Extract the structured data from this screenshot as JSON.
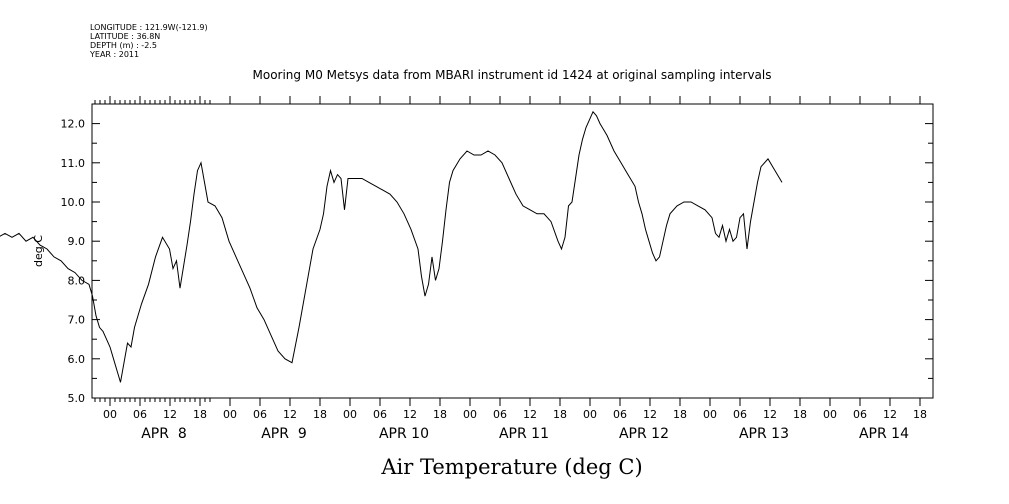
{
  "meta": {
    "longitude": "LONGITUDE : 121.9W(-121.9)",
    "latitude": "LATITUDE : 36.8N",
    "depth": "DEPTH (m) : -2.5",
    "year": "YEAR : 2011"
  },
  "chart_data": {
    "type": "line",
    "title": "Mooring M0 Metsys data from MBARI instrument id 1424 at original sampling intervals",
    "xlabel": "Air Temperature (deg C)",
    "ylabel": "deg C",
    "ylim": [
      5.0,
      12.5
    ],
    "xlim": [
      -3.8,
      19.2
    ],
    "x_units": "hours since Apr 8 00:00 UTC",
    "y_ticks": [
      "5.0",
      "6.0",
      "7.0",
      "8.0",
      "9.0",
      "10.0",
      "11.0",
      "12.0"
    ],
    "x_hour_ticks": [
      "00",
      "06",
      "12",
      "18"
    ],
    "days": [
      "APR  8",
      "APR  9",
      "APR 10",
      "APR 11",
      "APR 12",
      "APR 13",
      "APR 14"
    ],
    "grid": false,
    "series": [
      {
        "points": [
          [
            -3.8,
            9.5
          ],
          [
            -3.6,
            9.0
          ],
          [
            -3.4,
            9.3
          ],
          [
            -3.2,
            9.1
          ],
          [
            -3.0,
            9.2
          ],
          [
            -2.8,
            9.1
          ],
          [
            -2.6,
            9.2
          ],
          [
            -2.4,
            9.0
          ],
          [
            -2.2,
            9.1
          ],
          [
            -2.0,
            8.9
          ],
          [
            -1.8,
            8.8
          ],
          [
            -1.6,
            8.6
          ],
          [
            -1.4,
            8.5
          ],
          [
            -1.2,
            8.3
          ],
          [
            -1.0,
            8.2
          ],
          [
            -0.8,
            8.0
          ],
          [
            -0.6,
            7.9
          ],
          [
            -0.5,
            7.6
          ],
          [
            -0.4,
            7.1
          ],
          [
            -0.3,
            6.8
          ],
          [
            -0.2,
            6.7
          ],
          [
            -0.1,
            6.5
          ],
          [
            0.0,
            6.3
          ],
          [
            0.1,
            6.0
          ],
          [
            0.2,
            5.7
          ],
          [
            0.3,
            5.4
          ],
          [
            0.4,
            5.9
          ],
          [
            0.5,
            6.4
          ],
          [
            0.6,
            6.3
          ],
          [
            0.7,
            6.8
          ],
          [
            0.9,
            7.4
          ],
          [
            1.1,
            7.9
          ],
          [
            1.3,
            8.6
          ],
          [
            1.5,
            9.1
          ],
          [
            1.7,
            8.8
          ],
          [
            1.8,
            8.3
          ],
          [
            1.9,
            8.5
          ],
          [
            2.0,
            7.8
          ],
          [
            2.2,
            8.9
          ],
          [
            2.3,
            9.5
          ],
          [
            2.4,
            10.2
          ],
          [
            2.5,
            10.8
          ],
          [
            2.6,
            11.0
          ],
          [
            2.7,
            10.5
          ],
          [
            2.8,
            10.0
          ],
          [
            3.0,
            9.9
          ],
          [
            3.2,
            9.6
          ],
          [
            3.4,
            9.0
          ],
          [
            3.6,
            8.6
          ],
          [
            3.8,
            8.2
          ],
          [
            4.0,
            7.8
          ],
          [
            4.2,
            7.3
          ],
          [
            4.4,
            7.0
          ],
          [
            4.6,
            6.6
          ],
          [
            4.8,
            6.2
          ],
          [
            5.0,
            6.0
          ],
          [
            5.2,
            5.9
          ],
          [
            5.4,
            6.8
          ],
          [
            5.6,
            7.8
          ],
          [
            5.8,
            8.8
          ],
          [
            6.0,
            9.3
          ],
          [
            6.1,
            9.7
          ],
          [
            6.2,
            10.4
          ],
          [
            6.3,
            10.8
          ],
          [
            6.4,
            10.5
          ],
          [
            6.5,
            10.7
          ],
          [
            6.6,
            10.6
          ],
          [
            6.7,
            9.8
          ],
          [
            6.8,
            10.6
          ],
          [
            7.0,
            10.6
          ],
          [
            7.2,
            10.6
          ],
          [
            7.4,
            10.5
          ],
          [
            7.6,
            10.4
          ],
          [
            7.8,
            10.3
          ],
          [
            8.0,
            10.2
          ],
          [
            8.2,
            10.0
          ],
          [
            8.4,
            9.7
          ],
          [
            8.6,
            9.3
          ],
          [
            8.8,
            8.8
          ],
          [
            8.9,
            8.1
          ],
          [
            9.0,
            7.6
          ],
          [
            9.1,
            7.9
          ],
          [
            9.2,
            8.6
          ],
          [
            9.3,
            8.0
          ],
          [
            9.4,
            8.3
          ],
          [
            9.5,
            9.0
          ],
          [
            9.6,
            9.8
          ],
          [
            9.7,
            10.5
          ],
          [
            9.8,
            10.8
          ],
          [
            10.0,
            11.1
          ],
          [
            10.2,
            11.3
          ],
          [
            10.4,
            11.2
          ],
          [
            10.6,
            11.2
          ],
          [
            10.8,
            11.3
          ],
          [
            11.0,
            11.2
          ],
          [
            11.2,
            11.0
          ],
          [
            11.4,
            10.6
          ],
          [
            11.6,
            10.2
          ],
          [
            11.8,
            9.9
          ],
          [
            12.0,
            9.8
          ],
          [
            12.2,
            9.7
          ],
          [
            12.4,
            9.7
          ],
          [
            12.6,
            9.5
          ],
          [
            12.8,
            9.0
          ],
          [
            12.9,
            8.8
          ],
          [
            13.0,
            9.1
          ],
          [
            13.1,
            9.9
          ],
          [
            13.2,
            10.0
          ],
          [
            13.3,
            10.6
          ],
          [
            13.4,
            11.2
          ],
          [
            13.5,
            11.6
          ],
          [
            13.6,
            11.9
          ],
          [
            13.7,
            12.1
          ],
          [
            13.8,
            12.3
          ],
          [
            13.9,
            12.2
          ],
          [
            14.0,
            12.0
          ],
          [
            14.2,
            11.7
          ],
          [
            14.4,
            11.3
          ],
          [
            14.6,
            11.0
          ],
          [
            14.8,
            10.7
          ],
          [
            15.0,
            10.4
          ],
          [
            15.1,
            10.0
          ],
          [
            15.2,
            9.7
          ],
          [
            15.3,
            9.3
          ],
          [
            15.4,
            9.0
          ],
          [
            15.5,
            8.7
          ],
          [
            15.6,
            8.5
          ],
          [
            15.7,
            8.6
          ],
          [
            15.8,
            9.0
          ],
          [
            15.9,
            9.4
          ],
          [
            16.0,
            9.7
          ],
          [
            16.2,
            9.9
          ],
          [
            16.4,
            10.0
          ],
          [
            16.6,
            10.0
          ],
          [
            16.8,
            9.9
          ],
          [
            17.0,
            9.8
          ],
          [
            17.2,
            9.6
          ],
          [
            17.3,
            9.2
          ],
          [
            17.4,
            9.1
          ],
          [
            17.5,
            9.4
          ],
          [
            17.6,
            9.0
          ],
          [
            17.7,
            9.3
          ],
          [
            17.8,
            9.0
          ],
          [
            17.9,
            9.1
          ],
          [
            18.0,
            9.6
          ],
          [
            18.1,
            9.7
          ],
          [
            18.2,
            8.8
          ],
          [
            18.3,
            9.5
          ],
          [
            18.4,
            10.0
          ],
          [
            18.5,
            10.5
          ],
          [
            18.6,
            10.9
          ],
          [
            18.8,
            11.1
          ],
          [
            19.0,
            10.8
          ],
          [
            19.2,
            10.5
          ]
        ]
      }
    ]
  }
}
